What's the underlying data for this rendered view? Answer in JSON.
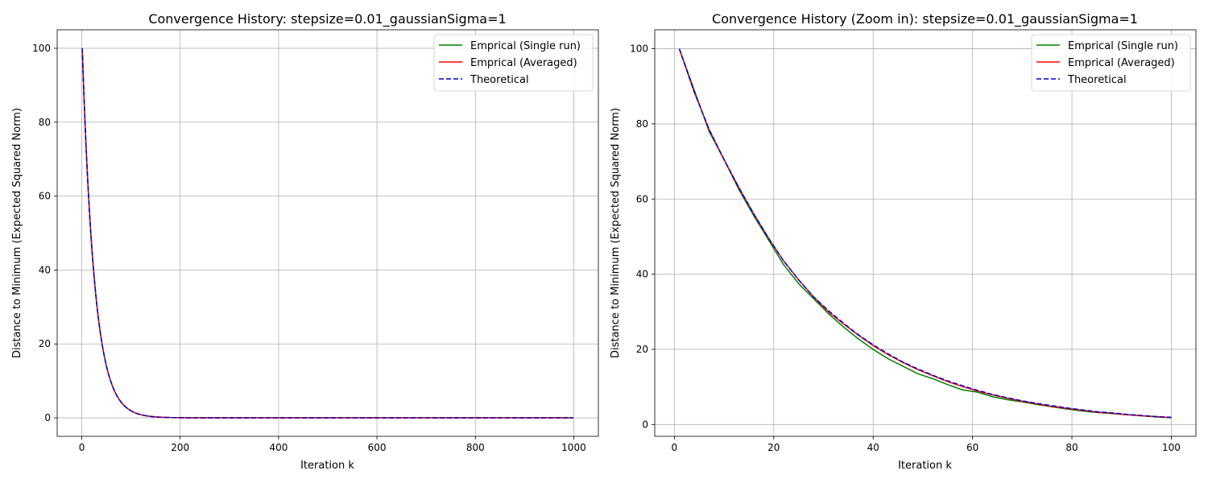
{
  "figure": {
    "background": "#ffffff"
  },
  "chart_data": [
    {
      "type": "line",
      "title": "Convergence History: stepsize=0.01_gaussianSigma=1",
      "xlabel": "Iteration k",
      "ylabel": "Distance to Minimum (Expected Squared Norm)",
      "xlim": [
        -50,
        1050
      ],
      "ylim": [
        -5,
        105
      ],
      "xticks": [
        0,
        200,
        400,
        600,
        800,
        1000
      ],
      "yticks": [
        0,
        20,
        40,
        60,
        80,
        100
      ],
      "grid": true,
      "legend_position": "top-right",
      "model": {
        "y0": 100,
        "rate": 0.04,
        "k_start": 1,
        "k_end": 1000
      },
      "series": [
        {
          "name": "Emprical (Single run)",
          "color": "#008000",
          "style": "solid",
          "points": [
            [
              1,
              100
            ],
            [
              5,
              80
            ],
            [
              10,
              65
            ],
            [
              20,
              44
            ],
            [
              30,
              29
            ],
            [
              40,
              20
            ],
            [
              50,
              13
            ],
            [
              60,
              8.8
            ],
            [
              80,
              3.9
            ],
            [
              100,
              1.7
            ],
            [
              150,
              0.2
            ],
            [
              200,
              0.03
            ],
            [
              400,
              0
            ],
            [
              600,
              0
            ],
            [
              800,
              0
            ],
            [
              1000,
              0
            ]
          ]
        },
        {
          "name": "Emprical (Averaged)",
          "color": "#ff0000",
          "style": "solid",
          "points": [
            [
              1,
              100
            ],
            [
              5,
              85
            ],
            [
              10,
              69
            ],
            [
              20,
              46
            ],
            [
              30,
              30
            ],
            [
              40,
              20.5
            ],
            [
              50,
              13.5
            ],
            [
              60,
              9
            ],
            [
              80,
              3.9
            ],
            [
              100,
              1.7
            ],
            [
              150,
              0.2
            ],
            [
              200,
              0.03
            ],
            [
              400,
              0
            ],
            [
              600,
              0
            ],
            [
              800,
              0
            ],
            [
              1000,
              0
            ]
          ]
        },
        {
          "name": "Theoretical",
          "color": "#0000cd",
          "style": "dashed",
          "points": [
            [
              1,
              100
            ],
            [
              5,
              85
            ],
            [
              10,
              69.5
            ],
            [
              20,
              46.5
            ],
            [
              30,
              30.5
            ],
            [
              40,
              21
            ],
            [
              50,
              13.8
            ],
            [
              60,
              9.1
            ],
            [
              80,
              4
            ],
            [
              100,
              1.7
            ],
            [
              150,
              0.2
            ],
            [
              200,
              0.03
            ],
            [
              400,
              0
            ],
            [
              600,
              0
            ],
            [
              800,
              0
            ],
            [
              1000,
              0
            ]
          ]
        }
      ]
    },
    {
      "type": "line",
      "title": "Convergence History (Zoom in): stepsize=0.01_gaussianSigma=1",
      "xlabel": "Iteration k",
      "ylabel": "Distance to Minimum (Expected Squared Norm)",
      "xlim": [
        -3.95,
        104.95
      ],
      "ylim": [
        -3.15,
        105.05
      ],
      "xticks": [
        0,
        20,
        40,
        60,
        80,
        100
      ],
      "yticks": [
        0,
        20,
        40,
        60,
        80,
        100
      ],
      "grid": true,
      "legend_position": "top-right",
      "series": [
        {
          "name": "Emprical (Single run)",
          "color": "#008000",
          "style": "solid",
          "points": [
            [
              1,
              100
            ],
            [
              4,
              89
            ],
            [
              7,
              78
            ],
            [
              10,
              70.5
            ],
            [
              13,
              62.5
            ],
            [
              16,
              55.5
            ],
            [
              19,
              49
            ],
            [
              22,
              42.5
            ],
            [
              25,
              37.5
            ],
            [
              28,
              33.5
            ],
            [
              31,
              29.5
            ],
            [
              34,
              26
            ],
            [
              37,
              22.8
            ],
            [
              40,
              20
            ],
            [
              43,
              17.5
            ],
            [
              46,
              15.5
            ],
            [
              49,
              13.5
            ],
            [
              52,
              12.2
            ],
            [
              55,
              10.6
            ],
            [
              58,
              9.2
            ],
            [
              61,
              8.6
            ],
            [
              64,
              7.4
            ],
            [
              67,
              6.6
            ],
            [
              70,
              6
            ],
            [
              73,
              5.3
            ],
            [
              76,
              4.7
            ],
            [
              79,
              4.1
            ],
            [
              82,
              3.6
            ],
            [
              85,
              3.2
            ],
            [
              88,
              2.9
            ],
            [
              91,
              2.6
            ],
            [
              94,
              2.3
            ],
            [
              97,
              2
            ],
            [
              100,
              1.8
            ]
          ]
        },
        {
          "name": "Emprical (Averaged)",
          "color": "#ff0000",
          "style": "solid",
          "points": [
            [
              1,
              100
            ],
            [
              4,
              88.5
            ],
            [
              7,
              78.5
            ],
            [
              10,
              70.5
            ],
            [
              13,
              63
            ],
            [
              16,
              56
            ],
            [
              19,
              49.5
            ],
            [
              22,
              43.5
            ],
            [
              25,
              38.5
            ],
            [
              28,
              34
            ],
            [
              31,
              30
            ],
            [
              34,
              26.8
            ],
            [
              37,
              23.8
            ],
            [
              40,
              21
            ],
            [
              43,
              18.6
            ],
            [
              46,
              16.5
            ],
            [
              49,
              14.6
            ],
            [
              52,
              13
            ],
            [
              55,
              11.4
            ],
            [
              58,
              10.1
            ],
            [
              61,
              8.9
            ],
            [
              64,
              7.9
            ],
            [
              67,
              7
            ],
            [
              70,
              6.2
            ],
            [
              73,
              5.5
            ],
            [
              76,
              4.8
            ],
            [
              79,
              4.3
            ],
            [
              82,
              3.8
            ],
            [
              85,
              3.3
            ],
            [
              88,
              3
            ],
            [
              91,
              2.6
            ],
            [
              94,
              2.3
            ],
            [
              97,
              2.1
            ],
            [
              100,
              1.8
            ]
          ]
        },
        {
          "name": "Theoretical",
          "color": "#0000cd",
          "style": "dashed",
          "points": [
            [
              1,
              100
            ],
            [
              4,
              88.5
            ],
            [
              7,
              78.5
            ],
            [
              10,
              70.5
            ],
            [
              13,
              63
            ],
            [
              16,
              56
            ],
            [
              19,
              49.5
            ],
            [
              22,
              43.5
            ],
            [
              25,
              38.5
            ],
            [
              28,
              34
            ],
            [
              31,
              30.3
            ],
            [
              34,
              27
            ],
            [
              37,
              23.9
            ],
            [
              40,
              21.2
            ],
            [
              43,
              18.8
            ],
            [
              46,
              16.6
            ],
            [
              49,
              14.8
            ],
            [
              52,
              13.1
            ],
            [
              55,
              11.6
            ],
            [
              58,
              10.3
            ],
            [
              61,
              9.1
            ],
            [
              64,
              8
            ],
            [
              67,
              7.1
            ],
            [
              70,
              6.3
            ],
            [
              73,
              5.6
            ],
            [
              76,
              5
            ],
            [
              79,
              4.4
            ],
            [
              82,
              3.9
            ],
            [
              85,
              3.4
            ],
            [
              88,
              3.1
            ],
            [
              91,
              2.7
            ],
            [
              94,
              2.4
            ],
            [
              97,
              2.1
            ],
            [
              100,
              1.9
            ]
          ]
        }
      ]
    }
  ]
}
